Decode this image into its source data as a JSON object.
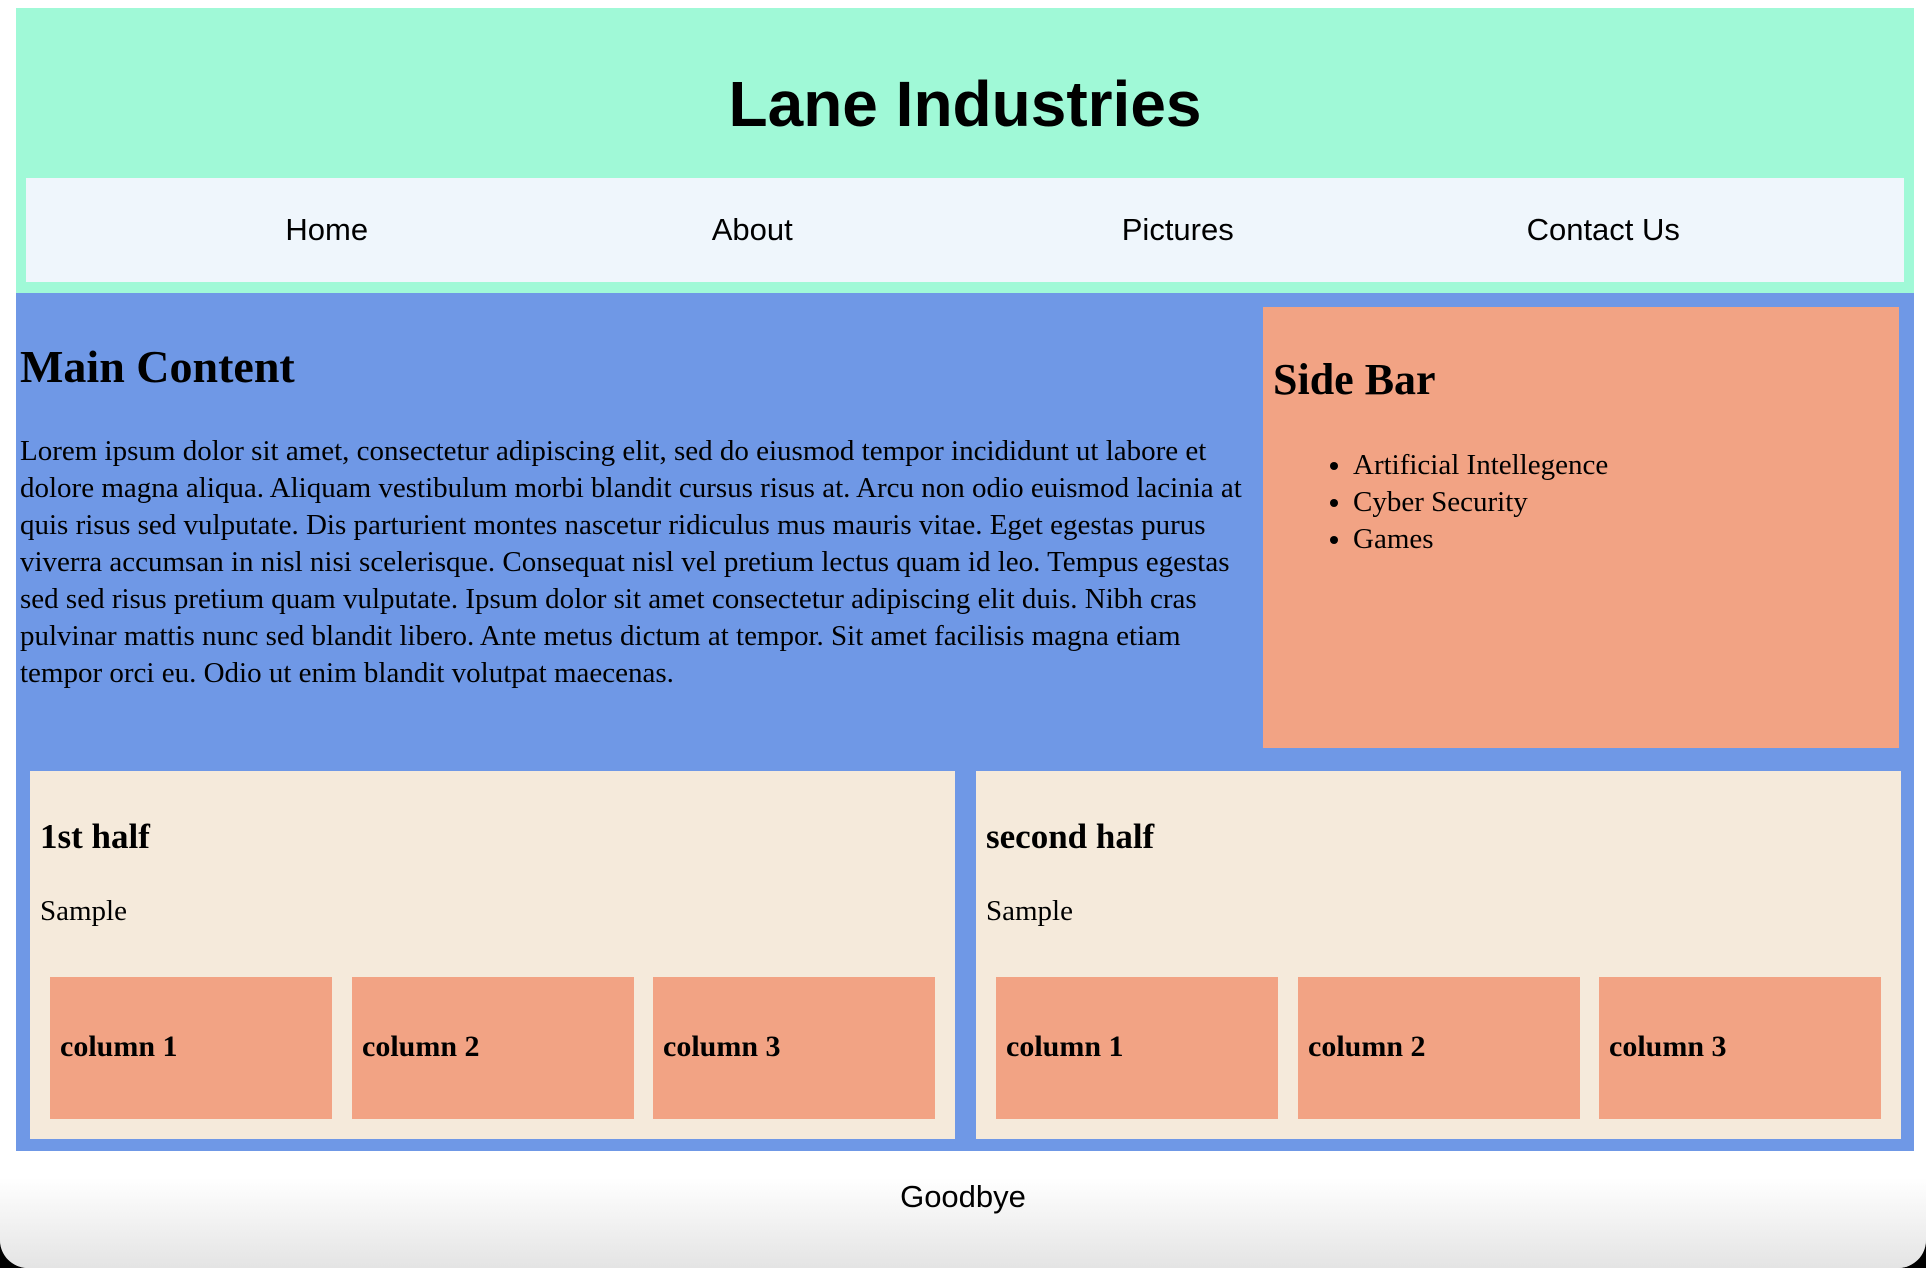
{
  "header": {
    "title": "Lane Industries"
  },
  "nav": {
    "items": [
      {
        "label": "Home"
      },
      {
        "label": "About"
      },
      {
        "label": "Pictures"
      },
      {
        "label": "Contact Us"
      }
    ]
  },
  "main": {
    "heading": "Main Content",
    "paragraph": "Lorem ipsum dolor sit amet, consectetur adipiscing elit, sed do eiusmod tempor incididunt ut labore et dolore magna aliqua. Aliquam vestibulum morbi blandit cursus risus at. Arcu non odio euismod lacinia at quis risus sed vulputate. Dis parturient montes nascetur ridiculus mus mauris vitae. Eget egestas purus viverra accumsan in nisl nisi scelerisque. Consequat nisl vel pretium lectus quam id leo. Tempus egestas sed sed risus pretium quam vulputate. Ipsum dolor sit amet consectetur adipiscing elit duis. Nibh cras pulvinar mattis nunc sed blandit libero. Ante metus dictum at tempor. Sit amet facilisis magna etiam tempor orci eu. Odio ut enim blandit volutpat maecenas."
  },
  "sidebar": {
    "heading": "Side Bar",
    "items": [
      {
        "label": "Artificial Intellegence"
      },
      {
        "label": "Cyber Security"
      },
      {
        "label": "Games"
      }
    ]
  },
  "halves": [
    {
      "heading": "1st half",
      "text": "Sample",
      "columns": [
        {
          "label": "column 1"
        },
        {
          "label": "column 2"
        },
        {
          "label": "column 3"
        }
      ]
    },
    {
      "heading": "second half",
      "text": "Sample",
      "columns": [
        {
          "label": "column 1"
        },
        {
          "label": "column 2"
        },
        {
          "label": "column 3"
        }
      ]
    }
  ],
  "footer": {
    "text": "Goodbye"
  },
  "colors": {
    "header_bg": "#a0f9d7",
    "nav_bg": "#eff6fc",
    "main_bg": "#6f98e6",
    "sidebar_bg": "#f2a384",
    "half_bg": "#f5eadb",
    "column_bg": "#f2a384"
  }
}
